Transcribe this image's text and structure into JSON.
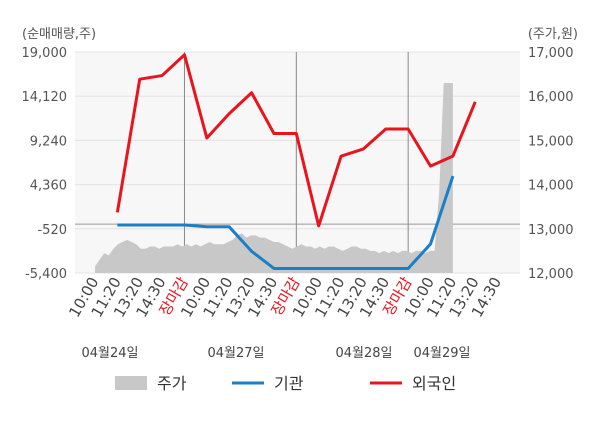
{
  "chart_data": {
    "type": "line",
    "left_axis_label": "(순매매량,주)",
    "right_axis_label": "(주가,원)",
    "left_ticks": [
      "19,000",
      "14,120",
      "9,240",
      "4,360",
      "-520",
      "-5,400"
    ],
    "right_ticks": [
      "17,000",
      "16,000",
      "15,000",
      "14,000",
      "13,000",
      "12,000"
    ],
    "ylim_left": [
      -5400,
      19000
    ],
    "ylim_right": [
      12000,
      17000
    ],
    "x_tick_labels": [
      "10:00",
      "11:20",
      "13:20",
      "14:30",
      "장마감",
      "10:00",
      "11:20",
      "13:20",
      "14:30",
      "장마감",
      "10:00",
      "11:20",
      "13:20",
      "14:30",
      "장마감",
      "10:00",
      "11:20",
      "13:20",
      "14:30"
    ],
    "closing_label": "장마감",
    "date_labels": [
      "04월24일",
      "04월27일",
      "04월28일",
      "04월29일"
    ],
    "legend": [
      {
        "label": "주가",
        "color": "#c8c8c8"
      },
      {
        "label": "기관",
        "color": "#1a7fc9"
      },
      {
        "label": "외국인",
        "color": "#e8141e"
      }
    ],
    "series": [
      {
        "name": "외국인",
        "axis": "left",
        "color": "#e8141e",
        "x": [
          1,
          2,
          3,
          4,
          5,
          6,
          7,
          8,
          9,
          10,
          11,
          12,
          13,
          14,
          15,
          16,
          17
        ],
        "values": [
          1300,
          16000,
          16400,
          18700,
          9500,
          12200,
          14500,
          10000,
          10000,
          -200,
          7500,
          8300,
          10500,
          10500,
          6400,
          7500,
          13500
        ],
        "comment_last_point_estimate": null
      },
      {
        "name": "기관",
        "axis": "left",
        "color": "#1a7fc9",
        "x": [
          1,
          4,
          5,
          6,
          7,
          8,
          10,
          11,
          12,
          13,
          14,
          15,
          16
        ],
        "values": [
          -100,
          -100,
          -300,
          -300,
          -3000,
          -4900,
          -4900,
          -4900,
          -4900,
          -4900,
          -4900,
          -2200,
          5300
        ]
      },
      {
        "name": "주가",
        "axis": "right",
        "color": "#c8c8c8",
        "x_start": 0,
        "x_end": 16,
        "values": [
          12150,
          12300,
          12450,
          12400,
          12550,
          12650,
          12700,
          12750,
          12700,
          12650,
          12550,
          12550,
          12600,
          12600,
          12550,
          12600,
          12600,
          12600,
          12650,
          12600,
          12650,
          12600,
          12650,
          12600,
          12650,
          12700,
          12650,
          12650,
          12650,
          12700,
          12750,
          12850,
          12900,
          12800,
          12850,
          12850,
          12800,
          12800,
          12750,
          12700,
          12700,
          12650,
          12600,
          12550,
          12600,
          12650,
          12600,
          12600,
          12550,
          12600,
          12550,
          12600,
          12600,
          12550,
          12500,
          12550,
          12600,
          12600,
          12550,
          12550,
          12500,
          12500,
          12450,
          12500,
          12450,
          12500,
          12450,
          12500,
          12500,
          12450,
          12500,
          12500,
          12450,
          12500,
          12500,
          13800,
          16300,
          16300,
          16300
        ]
      }
    ]
  }
}
